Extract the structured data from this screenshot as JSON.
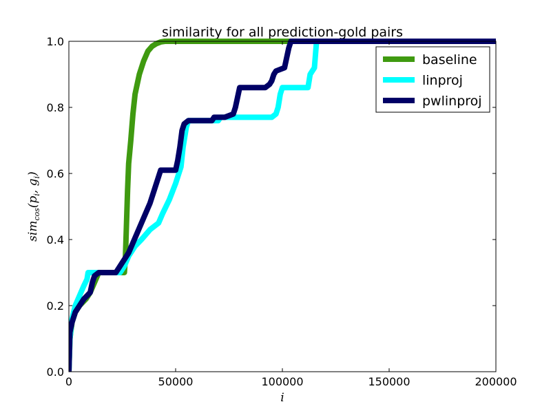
{
  "chart_data": {
    "type": "line",
    "title": "similarity for all prediction-gold pairs",
    "xlabel": "i",
    "ylabel": "sim_cos(p_i, g_i)",
    "ylabel_parts": {
      "main": "sim",
      "sub": "cos",
      "args": "(p",
      "sub_p": "i",
      "comma": ", g",
      "sub_g": "i",
      "close": ")"
    },
    "xlim": [
      0,
      200000
    ],
    "ylim": [
      0.0,
      1.0
    ],
    "x_ticks": [
      0,
      50000,
      100000,
      150000,
      200000
    ],
    "x_tick_labels": [
      "0",
      "50000",
      "100000",
      "150000",
      "200000"
    ],
    "y_ticks": [
      0.0,
      0.2,
      0.4,
      0.6,
      0.8,
      1.0
    ],
    "y_tick_labels": [
      "0.0",
      "0.2",
      "0.4",
      "0.6",
      "0.8",
      "1.0"
    ],
    "grid": false,
    "legend_position": "top-right",
    "series": [
      {
        "name": "baseline",
        "color": "#3f9a10",
        "x": [
          0,
          500,
          1500,
          3000,
          5000,
          8000,
          10000,
          12000,
          14000,
          20000,
          26000,
          26500,
          27000,
          27500,
          28000,
          29000,
          30000,
          31000,
          32000,
          33000,
          35000,
          37000,
          39000,
          41000,
          43000,
          45000,
          50000,
          200000
        ],
        "y": [
          0.0,
          0.1,
          0.15,
          0.18,
          0.2,
          0.22,
          0.24,
          0.27,
          0.3,
          0.3,
          0.3,
          0.35,
          0.45,
          0.55,
          0.63,
          0.7,
          0.78,
          0.84,
          0.87,
          0.9,
          0.94,
          0.97,
          0.985,
          0.993,
          0.998,
          1.0,
          1.0,
          1.0
        ]
      },
      {
        "name": "linproj",
        "color": "#00ffff",
        "x": [
          0,
          500,
          1500,
          3000,
          5000,
          7000,
          8500,
          9000,
          10000,
          14000,
          18000,
          22000,
          24000,
          26000,
          28000,
          31000,
          34000,
          38000,
          42000,
          44000,
          47000,
          50000,
          51500,
          52500,
          53500,
          55000,
          56000,
          57000,
          60000,
          70000,
          71000,
          80000,
          85000,
          95000,
          97000,
          98000,
          99000,
          100000,
          110000,
          112000,
          112500,
          113000,
          114000,
          115000,
          115500,
          116000,
          117000,
          200000
        ],
        "y": [
          0.0,
          0.1,
          0.16,
          0.2,
          0.23,
          0.26,
          0.28,
          0.3,
          0.3,
          0.3,
          0.3,
          0.3,
          0.3,
          0.32,
          0.35,
          0.38,
          0.4,
          0.43,
          0.45,
          0.48,
          0.52,
          0.57,
          0.6,
          0.62,
          0.68,
          0.74,
          0.76,
          0.76,
          0.76,
          0.76,
          0.77,
          0.77,
          0.77,
          0.77,
          0.78,
          0.8,
          0.84,
          0.86,
          0.86,
          0.86,
          0.88,
          0.9,
          0.91,
          0.92,
          0.96,
          1.0,
          1.0,
          1.0
        ]
      },
      {
        "name": "pwlinproj",
        "color": "#000066",
        "x": [
          0,
          500,
          1500,
          3000,
          5000,
          7000,
          8500,
          10000,
          11000,
          12000,
          14000,
          20000,
          22000,
          24000,
          26000,
          28000,
          32000,
          36000,
          38000,
          40000,
          42000,
          43000,
          48000,
          50000,
          51000,
          52000,
          53000,
          54000,
          56000,
          60000,
          67000,
          68000,
          73000,
          77000,
          78000,
          79000,
          80000,
          92000,
          94000,
          95000,
          96000,
          97000,
          101000,
          102000,
          103000,
          104000,
          200000
        ],
        "y": [
          0.0,
          0.12,
          0.15,
          0.18,
          0.2,
          0.22,
          0.23,
          0.24,
          0.27,
          0.29,
          0.3,
          0.3,
          0.3,
          0.32,
          0.34,
          0.36,
          0.42,
          0.48,
          0.51,
          0.55,
          0.59,
          0.61,
          0.61,
          0.61,
          0.64,
          0.68,
          0.73,
          0.75,
          0.76,
          0.76,
          0.76,
          0.77,
          0.77,
          0.78,
          0.8,
          0.83,
          0.86,
          0.86,
          0.87,
          0.88,
          0.9,
          0.91,
          0.92,
          0.95,
          0.98,
          1.0,
          1.0
        ]
      }
    ]
  }
}
